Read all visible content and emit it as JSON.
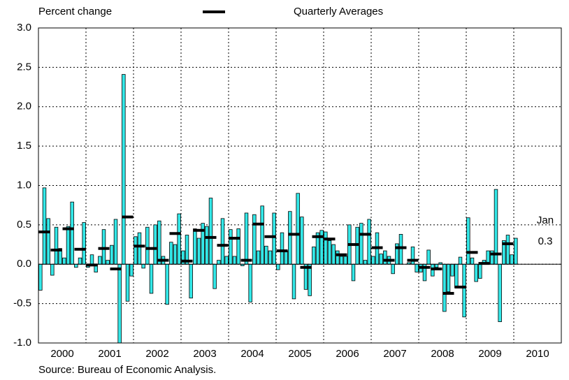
{
  "chart_data": {
    "type": "bar",
    "y_label": "Percent change",
    "legend": "Quarterly Averages",
    "source": "Source: Bureau of Economic Analysis.",
    "annotations": [
      "Jan",
      "0.3"
    ],
    "year_labels": [
      "2000",
      "2001",
      "2002",
      "2003",
      "2004",
      "2005",
      "2006",
      "2007",
      "2008",
      "2009",
      "2010"
    ],
    "ylim": [
      -1,
      3
    ],
    "yticks": [
      {
        "value": -1,
        "label": "-1.0"
      },
      {
        "value": -0.5,
        "label": "-0.5"
      },
      {
        "value": 0,
        "label": "0.0"
      },
      {
        "value": 0.5,
        "label": "0.5"
      },
      {
        "value": 1,
        "label": "1.0"
      },
      {
        "value": 1.5,
        "label": "1.5"
      },
      {
        "value": 2,
        "label": "2.0"
      },
      {
        "value": 2.5,
        "label": "2.5"
      },
      {
        "value": 3,
        "label": "3.0"
      }
    ],
    "grid": true,
    "series": [
      {
        "color": "#33e8e8",
        "values": [
          -0.33,
          0.97,
          0.58,
          -0.14,
          0.47,
          0.2,
          0.08,
          0.48,
          0.79,
          -0.04,
          0.08,
          0.53,
          -0.04,
          0.12,
          -0.1,
          0.1,
          0.44,
          0.05,
          0.24,
          0.57,
          -1.0,
          2.41,
          -0.47,
          -0.15,
          0.35,
          0.4,
          -0.05,
          0.47,
          -0.37,
          0.5,
          0.55,
          0.1,
          -0.51,
          0.28,
          0.25,
          0.64,
          0.17,
          0.37,
          -0.43,
          0.45,
          0.33,
          0.52,
          0.48,
          0.84,
          -0.31,
          0.05,
          0.58,
          0.1,
          0.44,
          0.1,
          0.45,
          -0.02,
          0.65,
          -0.48,
          0.63,
          0.17,
          0.74,
          0.23,
          0.17,
          0.65,
          -0.07,
          0.4,
          0.17,
          0.67,
          -0.44,
          0.9,
          0.6,
          -0.32,
          -0.4,
          0.22,
          0.4,
          0.43,
          0.41,
          0.3,
          0.25,
          0.17,
          0.1,
          0.1,
          0.5,
          -0.21,
          0.47,
          0.52,
          0.05,
          0.57,
          0.1,
          0.4,
          0.13,
          0.17,
          0.1,
          -0.12,
          0.26,
          0.38,
          0.0,
          0.02,
          0.22,
          -0.1,
          -0.1,
          -0.21,
          0.18,
          -0.15,
          -0.04,
          0.02,
          -0.6,
          -0.35,
          -0.15,
          -0.3,
          0.09,
          -0.67,
          0.59,
          0.08,
          -0.22,
          -0.18,
          0.05,
          0.17,
          0.17,
          0.95,
          -0.73,
          0.3,
          0.37,
          0.12,
          0.33
        ]
      },
      {
        "name": "Quarterly Averages",
        "color": "#000000",
        "values": [
          0.41,
          0.18,
          0.45,
          0.19,
          -0.01,
          0.2,
          -0.06,
          0.6,
          0.23,
          0.2,
          0.05,
          0.39,
          0.04,
          0.43,
          0.34,
          0.24,
          0.33,
          0.05,
          0.51,
          0.35,
          0.17,
          0.38,
          -0.04,
          0.35,
          0.32,
          0.12,
          0.25,
          0.38,
          0.21,
          0.05,
          0.21,
          0.05,
          -0.04,
          -0.06,
          -0.37,
          -0.29,
          0.15,
          0.01,
          0.13,
          0.26
        ]
      }
    ]
  }
}
